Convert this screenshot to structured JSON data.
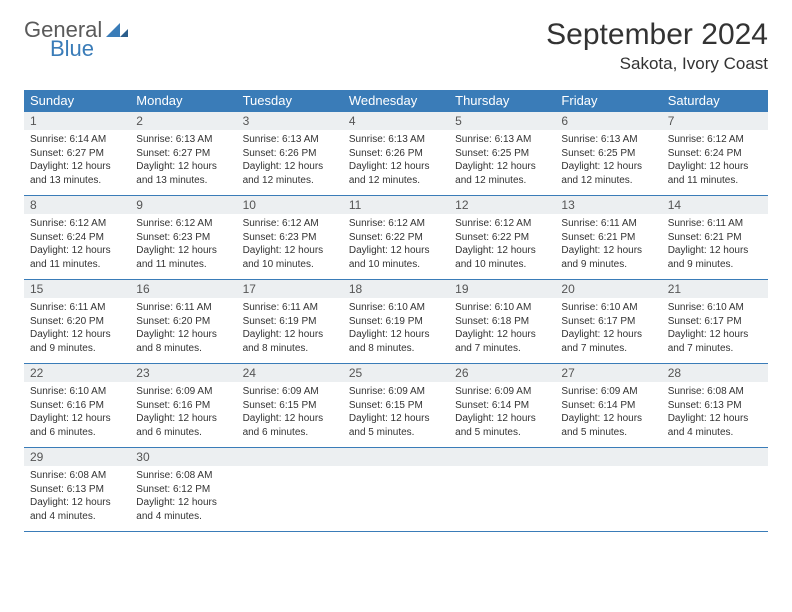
{
  "brand": {
    "name_part1": "General",
    "name_part2": "Blue"
  },
  "title": "September 2024",
  "location": "Sakota, Ivory Coast",
  "colors": {
    "header_bar": "#3a7cb8",
    "daynum_bg": "#eceff1",
    "rule": "#3a7cb8",
    "text": "#333333",
    "logo_gray": "#5a5a5a",
    "logo_blue": "#3a7cb8",
    "background": "#ffffff"
  },
  "typography": {
    "title_fontsize": 30,
    "location_fontsize": 17,
    "dow_fontsize": 13,
    "daynum_fontsize": 12,
    "body_fontsize": 10
  },
  "days_of_week": [
    "Sunday",
    "Monday",
    "Tuesday",
    "Wednesday",
    "Thursday",
    "Friday",
    "Saturday"
  ],
  "weeks": [
    [
      {
        "n": "1",
        "sunrise": "Sunrise: 6:14 AM",
        "sunset": "Sunset: 6:27 PM",
        "day1": "Daylight: 12 hours",
        "day2": "and 13 minutes."
      },
      {
        "n": "2",
        "sunrise": "Sunrise: 6:13 AM",
        "sunset": "Sunset: 6:27 PM",
        "day1": "Daylight: 12 hours",
        "day2": "and 13 minutes."
      },
      {
        "n": "3",
        "sunrise": "Sunrise: 6:13 AM",
        "sunset": "Sunset: 6:26 PM",
        "day1": "Daylight: 12 hours",
        "day2": "and 12 minutes."
      },
      {
        "n": "4",
        "sunrise": "Sunrise: 6:13 AM",
        "sunset": "Sunset: 6:26 PM",
        "day1": "Daylight: 12 hours",
        "day2": "and 12 minutes."
      },
      {
        "n": "5",
        "sunrise": "Sunrise: 6:13 AM",
        "sunset": "Sunset: 6:25 PM",
        "day1": "Daylight: 12 hours",
        "day2": "and 12 minutes."
      },
      {
        "n": "6",
        "sunrise": "Sunrise: 6:13 AM",
        "sunset": "Sunset: 6:25 PM",
        "day1": "Daylight: 12 hours",
        "day2": "and 12 minutes."
      },
      {
        "n": "7",
        "sunrise": "Sunrise: 6:12 AM",
        "sunset": "Sunset: 6:24 PM",
        "day1": "Daylight: 12 hours",
        "day2": "and 11 minutes."
      }
    ],
    [
      {
        "n": "8",
        "sunrise": "Sunrise: 6:12 AM",
        "sunset": "Sunset: 6:24 PM",
        "day1": "Daylight: 12 hours",
        "day2": "and 11 minutes."
      },
      {
        "n": "9",
        "sunrise": "Sunrise: 6:12 AM",
        "sunset": "Sunset: 6:23 PM",
        "day1": "Daylight: 12 hours",
        "day2": "and 11 minutes."
      },
      {
        "n": "10",
        "sunrise": "Sunrise: 6:12 AM",
        "sunset": "Sunset: 6:23 PM",
        "day1": "Daylight: 12 hours",
        "day2": "and 10 minutes."
      },
      {
        "n": "11",
        "sunrise": "Sunrise: 6:12 AM",
        "sunset": "Sunset: 6:22 PM",
        "day1": "Daylight: 12 hours",
        "day2": "and 10 minutes."
      },
      {
        "n": "12",
        "sunrise": "Sunrise: 6:12 AM",
        "sunset": "Sunset: 6:22 PM",
        "day1": "Daylight: 12 hours",
        "day2": "and 10 minutes."
      },
      {
        "n": "13",
        "sunrise": "Sunrise: 6:11 AM",
        "sunset": "Sunset: 6:21 PM",
        "day1": "Daylight: 12 hours",
        "day2": "and 9 minutes."
      },
      {
        "n": "14",
        "sunrise": "Sunrise: 6:11 AM",
        "sunset": "Sunset: 6:21 PM",
        "day1": "Daylight: 12 hours",
        "day2": "and 9 minutes."
      }
    ],
    [
      {
        "n": "15",
        "sunrise": "Sunrise: 6:11 AM",
        "sunset": "Sunset: 6:20 PM",
        "day1": "Daylight: 12 hours",
        "day2": "and 9 minutes."
      },
      {
        "n": "16",
        "sunrise": "Sunrise: 6:11 AM",
        "sunset": "Sunset: 6:20 PM",
        "day1": "Daylight: 12 hours",
        "day2": "and 8 minutes."
      },
      {
        "n": "17",
        "sunrise": "Sunrise: 6:11 AM",
        "sunset": "Sunset: 6:19 PM",
        "day1": "Daylight: 12 hours",
        "day2": "and 8 minutes."
      },
      {
        "n": "18",
        "sunrise": "Sunrise: 6:10 AM",
        "sunset": "Sunset: 6:19 PM",
        "day1": "Daylight: 12 hours",
        "day2": "and 8 minutes."
      },
      {
        "n": "19",
        "sunrise": "Sunrise: 6:10 AM",
        "sunset": "Sunset: 6:18 PM",
        "day1": "Daylight: 12 hours",
        "day2": "and 7 minutes."
      },
      {
        "n": "20",
        "sunrise": "Sunrise: 6:10 AM",
        "sunset": "Sunset: 6:17 PM",
        "day1": "Daylight: 12 hours",
        "day2": "and 7 minutes."
      },
      {
        "n": "21",
        "sunrise": "Sunrise: 6:10 AM",
        "sunset": "Sunset: 6:17 PM",
        "day1": "Daylight: 12 hours",
        "day2": "and 7 minutes."
      }
    ],
    [
      {
        "n": "22",
        "sunrise": "Sunrise: 6:10 AM",
        "sunset": "Sunset: 6:16 PM",
        "day1": "Daylight: 12 hours",
        "day2": "and 6 minutes."
      },
      {
        "n": "23",
        "sunrise": "Sunrise: 6:09 AM",
        "sunset": "Sunset: 6:16 PM",
        "day1": "Daylight: 12 hours",
        "day2": "and 6 minutes."
      },
      {
        "n": "24",
        "sunrise": "Sunrise: 6:09 AM",
        "sunset": "Sunset: 6:15 PM",
        "day1": "Daylight: 12 hours",
        "day2": "and 6 minutes."
      },
      {
        "n": "25",
        "sunrise": "Sunrise: 6:09 AM",
        "sunset": "Sunset: 6:15 PM",
        "day1": "Daylight: 12 hours",
        "day2": "and 5 minutes."
      },
      {
        "n": "26",
        "sunrise": "Sunrise: 6:09 AM",
        "sunset": "Sunset: 6:14 PM",
        "day1": "Daylight: 12 hours",
        "day2": "and 5 minutes."
      },
      {
        "n": "27",
        "sunrise": "Sunrise: 6:09 AM",
        "sunset": "Sunset: 6:14 PM",
        "day1": "Daylight: 12 hours",
        "day2": "and 5 minutes."
      },
      {
        "n": "28",
        "sunrise": "Sunrise: 6:08 AM",
        "sunset": "Sunset: 6:13 PM",
        "day1": "Daylight: 12 hours",
        "day2": "and 4 minutes."
      }
    ],
    [
      {
        "n": "29",
        "sunrise": "Sunrise: 6:08 AM",
        "sunset": "Sunset: 6:13 PM",
        "day1": "Daylight: 12 hours",
        "day2": "and 4 minutes."
      },
      {
        "n": "30",
        "sunrise": "Sunrise: 6:08 AM",
        "sunset": "Sunset: 6:12 PM",
        "day1": "Daylight: 12 hours",
        "day2": "and 4 minutes."
      },
      {
        "n": "",
        "sunrise": "",
        "sunset": "",
        "day1": "",
        "day2": ""
      },
      {
        "n": "",
        "sunrise": "",
        "sunset": "",
        "day1": "",
        "day2": ""
      },
      {
        "n": "",
        "sunrise": "",
        "sunset": "",
        "day1": "",
        "day2": ""
      },
      {
        "n": "",
        "sunrise": "",
        "sunset": "",
        "day1": "",
        "day2": ""
      },
      {
        "n": "",
        "sunrise": "",
        "sunset": "",
        "day1": "",
        "day2": ""
      }
    ]
  ]
}
